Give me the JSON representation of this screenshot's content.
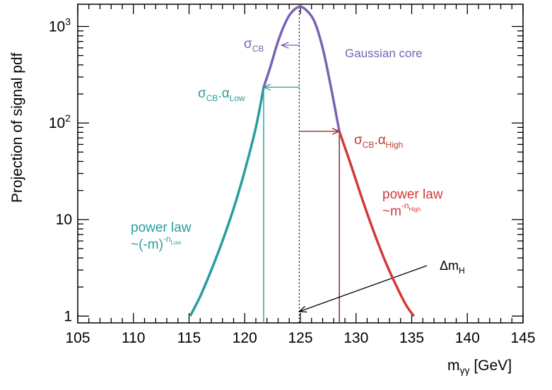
{
  "chart_data": {
    "type": "line",
    "xlabel_main": "m",
    "xlabel_sub": "γγ",
    "xlabel_unit": " [GeV]",
    "ylabel": "Projection of signal pdf",
    "xlim": [
      105,
      145
    ],
    "ylim": [
      0.85,
      1700
    ],
    "yscale": "log",
    "x_ticks": [
      105,
      110,
      115,
      120,
      125,
      130,
      135,
      140,
      145
    ],
    "y_tick_labels": [
      {
        "value": 1,
        "base": "1",
        "exp": ""
      },
      {
        "value": 10,
        "base": "10",
        "exp": ""
      },
      {
        "value": 100,
        "base": "10",
        "exp": "2"
      },
      {
        "value": 1000,
        "base": "10",
        "exp": "3"
      }
    ],
    "mean": 124.9,
    "peak": 1600,
    "sigma_cb": 1.6,
    "alpha_low_x": 121.7,
    "alpha_low_y": 235,
    "alpha_high_x": 128.5,
    "alpha_high_y": 82,
    "series": [
      {
        "role": "power-law-low",
        "color": "#2a9d9d",
        "x": [
          115.1,
          116.0,
          117.0,
          118.0,
          119.0,
          120.0,
          121.0,
          121.7
        ],
        "y": [
          1.0,
          1.6,
          3.0,
          6.0,
          13.0,
          32.0,
          90.0,
          235.0
        ]
      },
      {
        "role": "gaussian-core",
        "color": "#7b62b5",
        "x": [
          121.7,
          122.3,
          122.9,
          123.5,
          124.1,
          124.9,
          125.6,
          126.3,
          127.0,
          127.7,
          128.5
        ],
        "y": [
          235,
          380,
          650,
          1000,
          1350,
          1600,
          1450,
          1100,
          600,
          250,
          82
        ]
      },
      {
        "role": "power-law-high",
        "color": "#d13a3a",
        "x": [
          128.5,
          129.5,
          130.5,
          131.5,
          132.5,
          133.5,
          134.5,
          135.2
        ],
        "y": [
          82,
          38,
          17,
          8.0,
          4.0,
          2.2,
          1.3,
          1.0
        ]
      }
    ],
    "annotations": {
      "sigma_cb": {
        "sym": "σ",
        "sub": "CB",
        "color": "#7b62b5"
      },
      "gaussian_core": {
        "text": "Gaussian core",
        "color": "#7b62b5"
      },
      "alpha_low": {
        "sym1": "σ",
        "sub1": "CB",
        "dot": ".",
        "sym2": "α",
        "sub2": "Low",
        "color": "#2a9d9d"
      },
      "alpha_high": {
        "sym1": "σ",
        "sub1": "CB",
        "dot": ".",
        "sym2": "α",
        "sub2": "High",
        "color": "#c0392b"
      },
      "power_low": {
        "line1": "power law",
        "line2_base": "~(-m)",
        "line2_exp": "-n",
        "line2_expsub": "Low",
        "color": "#2a9d9d"
      },
      "power_high": {
        "line1": "power law",
        "line2_base": "~m",
        "line2_exp": "-n",
        "line2_expsub": "High",
        "color": "#d13a3a"
      },
      "delta_mh": {
        "sym": "Δ",
        "main": "m",
        "sub": "H",
        "color": "#000000"
      }
    }
  }
}
